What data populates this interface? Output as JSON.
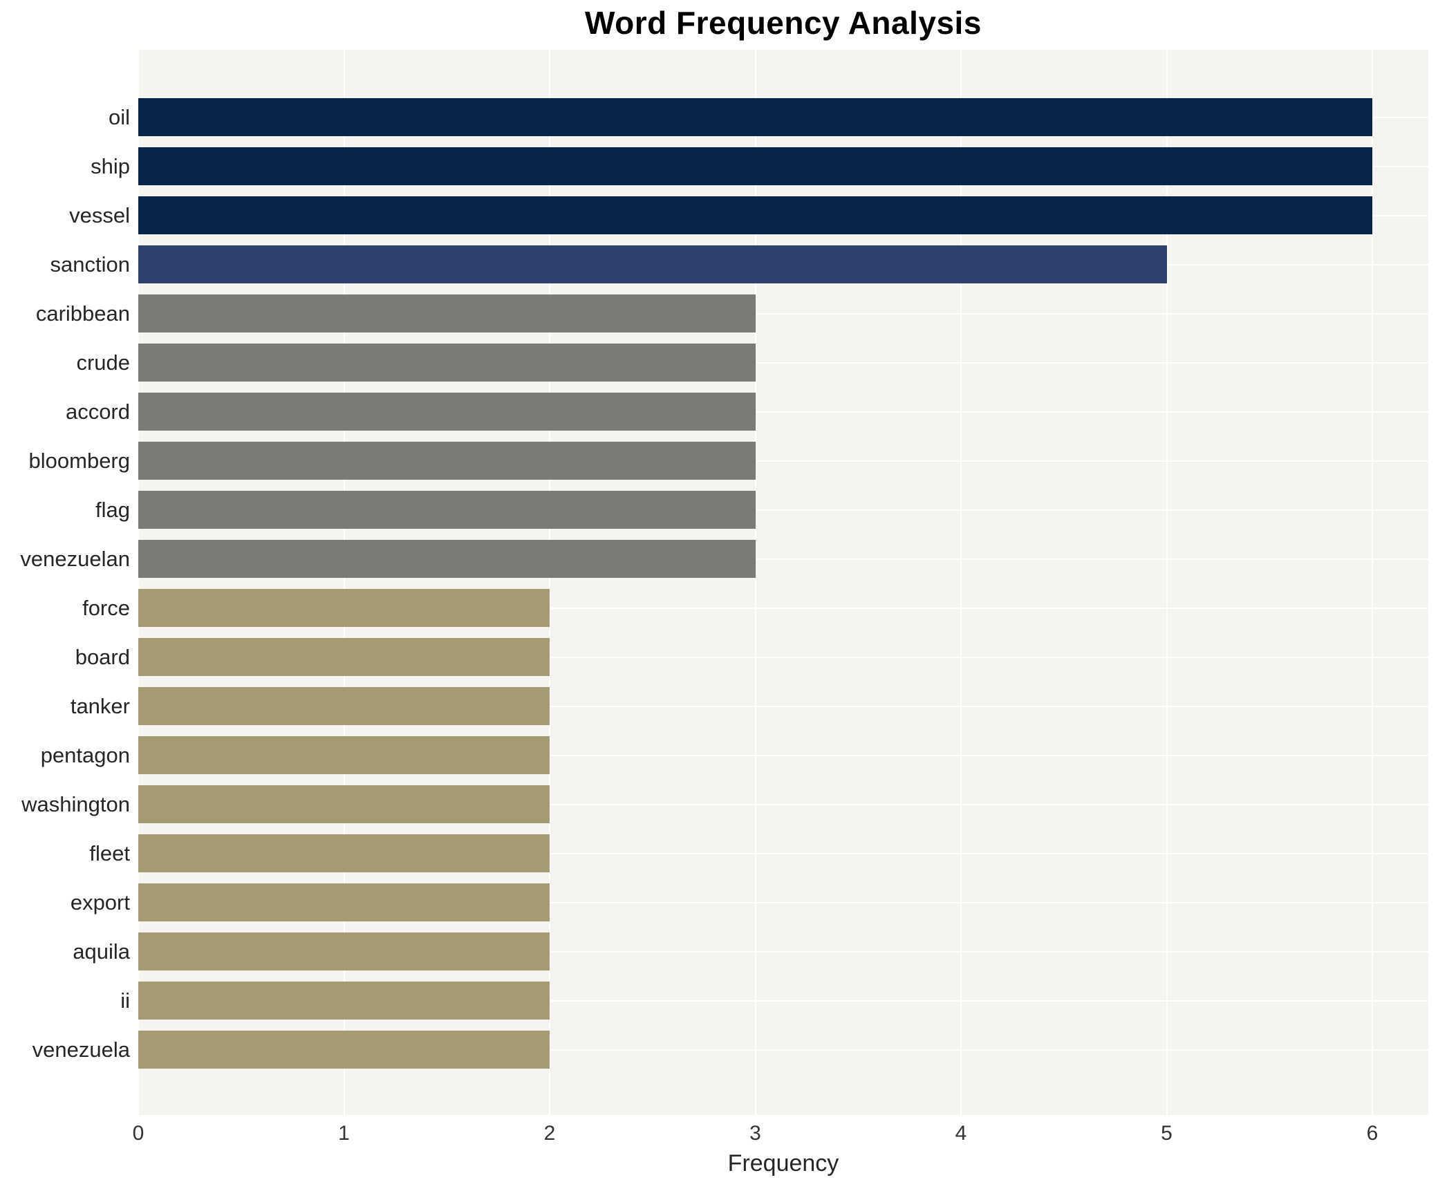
{
  "chart_data": {
    "type": "bar",
    "orientation": "horizontal",
    "title": "Word Frequency Analysis",
    "xlabel": "Frequency",
    "ylabel": "",
    "categories": [
      "oil",
      "ship",
      "vessel",
      "sanction",
      "caribbean",
      "crude",
      "accord",
      "bloomberg",
      "flag",
      "venezuelan",
      "force",
      "board",
      "tanker",
      "pentagon",
      "washington",
      "fleet",
      "export",
      "aquila",
      "ii",
      "venezuela"
    ],
    "values": [
      6,
      6,
      6,
      5,
      3,
      3,
      3,
      3,
      3,
      3,
      2,
      2,
      2,
      2,
      2,
      2,
      2,
      2,
      2,
      2
    ],
    "bar_colors": [
      "#072449",
      "#072449",
      "#072449",
      "#2d406e",
      "#7b7a76",
      "#7b7a76",
      "#7b7a76",
      "#7b7a76",
      "#7b7a76",
      "#7b7a76",
      "#a59b72",
      "#a59b72",
      "#a59b72",
      "#a59b72",
      "#a59b72",
      "#a59b72",
      "#a59b72",
      "#a59b72",
      "#a59b72",
      "#a59b72"
    ],
    "xlim": [
      0,
      6.27
    ],
    "xticks": [
      0,
      1,
      2,
      3,
      4,
      5,
      6
    ],
    "grid": "white gridlines on light gray panel",
    "legend": "none",
    "colors": {
      "panel_background": "#f5f4f1",
      "page_background": "#ffffff",
      "grid_line": "#ffffff",
      "title_text": "#000000",
      "category_text": "#262626",
      "tick_text": "#333333"
    }
  }
}
